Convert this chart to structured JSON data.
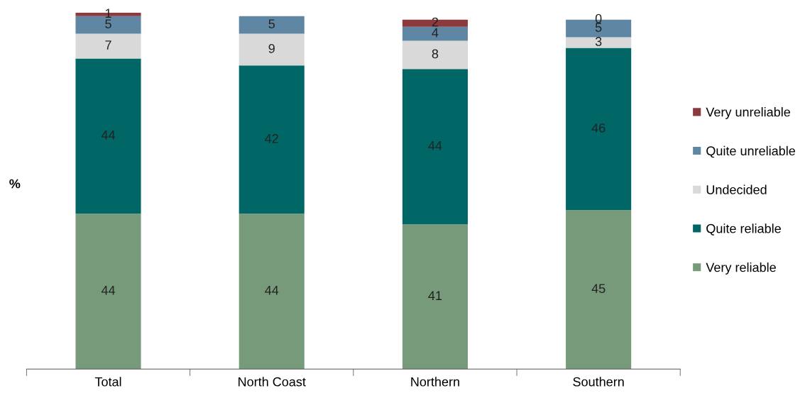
{
  "chart_data": {
    "type": "bar",
    "stacked": true,
    "ylabel": "%",
    "categories": [
      "Total",
      "North Coast",
      "Northern",
      "Southern"
    ],
    "ylim": [
      0,
      101
    ],
    "tick_labels": "x",
    "grid": false,
    "legend": "right",
    "series": [
      {
        "name": "Very reliable",
        "color": "#779a7b",
        "values": [
          44,
          44,
          41,
          45
        ],
        "value_labels": [
          "44",
          "44",
          "41",
          "45"
        ]
      },
      {
        "name": "Quite reliable",
        "color": "#006666",
        "values": [
          44,
          42,
          44,
          46
        ],
        "value_labels": [
          "44",
          "42",
          "44",
          "46"
        ]
      },
      {
        "name": "Undecided",
        "color": "#d9d9d9",
        "values": [
          7,
          9,
          8,
          3
        ],
        "value_labels": [
          "7",
          "9",
          "8",
          "3"
        ]
      },
      {
        "name": "Quite unreliable",
        "color": "#5f87a4",
        "values": [
          5,
          5,
          4,
          5
        ],
        "value_labels": [
          "5",
          "5",
          "4",
          "5"
        ]
      },
      {
        "name": "Very unreliable",
        "color": "#8b3a3e",
        "values": [
          1,
          0,
          2,
          0
        ],
        "value_labels": [
          "1",
          null,
          "2",
          "0"
        ]
      }
    ]
  }
}
